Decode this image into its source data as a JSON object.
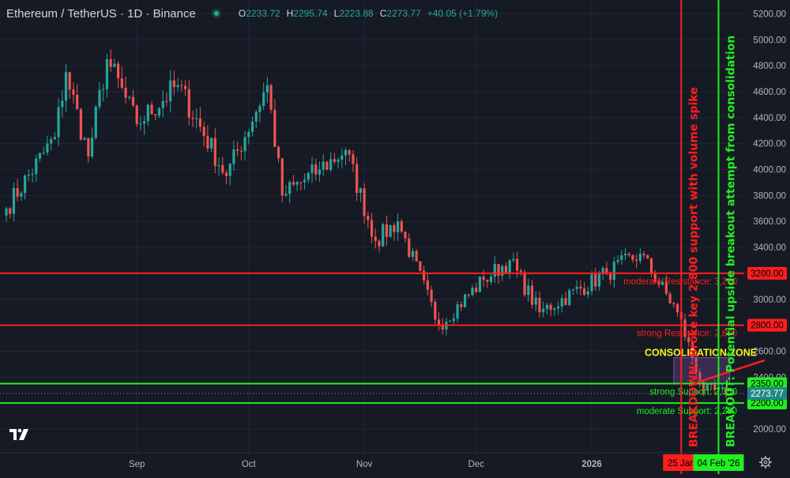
{
  "header": {
    "symbol": "Ethereum / TetherUS · 1D · Binance",
    "o_label": "O",
    "o_value": "2233.72",
    "h_label": "H",
    "h_value": "2295.74",
    "l_label": "L",
    "l_value": "2223.88",
    "c_label": "C",
    "c_value": "2273.77",
    "change": "+40.05 (+1.79%)"
  },
  "chart_data": {
    "type": "candlestick",
    "y_ticks": [
      2000,
      2200,
      2400,
      2600,
      2800,
      3000,
      3200,
      3400,
      3600,
      3800,
      4000,
      4200,
      4400,
      4600,
      4800,
      5000,
      5200
    ],
    "ylim": [
      1750,
      5270
    ],
    "x_ticks": [
      "Sep",
      "Oct",
      "Nov",
      "Dec",
      "2026"
    ],
    "date_range": [
      "2025-07-28",
      "2026-02-06"
    ],
    "candle_seed": [
      {
        "date": "2025-07-28",
        "close": 3700
      },
      {
        "date": "2025-08-10",
        "close": 4250
      },
      {
        "date": "2025-08-13",
        "close": 4750
      },
      {
        "date": "2025-08-19",
        "close": 4100
      },
      {
        "date": "2025-08-24",
        "close": 4850
      },
      {
        "date": "2025-09-01",
        "close": 4350
      },
      {
        "date": "2025-09-12",
        "close": 4650
      },
      {
        "date": "2025-09-25",
        "close": 3950
      },
      {
        "date": "2025-10-06",
        "close": 4650
      },
      {
        "date": "2025-10-10",
        "close": 3800
      },
      {
        "date": "2025-10-20",
        "close": 4000
      },
      {
        "date": "2025-10-27",
        "close": 4150
      },
      {
        "date": "2025-11-04",
        "close": 3450
      },
      {
        "date": "2025-11-10",
        "close": 3600
      },
      {
        "date": "2025-11-21",
        "close": 2800
      },
      {
        "date": "2025-12-03",
        "close": 3150
      },
      {
        "date": "2025-12-10",
        "close": 3300
      },
      {
        "date": "2025-12-18",
        "close": 2900
      },
      {
        "date": "2026-01-05",
        "close": 3200
      },
      {
        "date": "2026-01-14",
        "close": 3350
      },
      {
        "date": "2026-01-24",
        "close": 2900
      },
      {
        "date": "2026-01-31",
        "close": 2300
      },
      {
        "date": "2026-02-06",
        "close": 2273.77
      }
    ],
    "levels": [
      {
        "price": 3200,
        "label": "moderate Resistance: 3,200",
        "tag": "3200.00",
        "color": "#ff1e1e"
      },
      {
        "price": 2800,
        "label": "strong Resistance: 2,800",
        "tag": "2800.00",
        "color": "#ff1e1e"
      },
      {
        "price": 2350,
        "label": "strong Support: 2,350",
        "tag": "2350.00",
        "color": "#22ee22"
      },
      {
        "price": 2200,
        "label": "moderate Support: 2,200",
        "tag": "2200.00",
        "color": "#22ee22"
      }
    ],
    "last_price": {
      "price": 2273.77,
      "tag": "2273.77"
    },
    "zone_label": "CONSOLIDATION ZONE",
    "verticals": [
      {
        "date": "2026-01-25",
        "color": "#ff1e1e",
        "text": "BREAKDOWN: Broke key 2,800 support with volume spike",
        "date_tag": "25 Jan"
      },
      {
        "date": "2026-02-04",
        "color": "#22ee22",
        "text": "BREAKOUT: Potential upside breakout attempt from consolidation",
        "date_tag": "04 Feb '26"
      }
    ],
    "colors": {
      "up": "#26a69a",
      "down": "#ef5350",
      "background": "#161a25",
      "grid": "#232734",
      "axis_text": "#b2b5be"
    }
  }
}
